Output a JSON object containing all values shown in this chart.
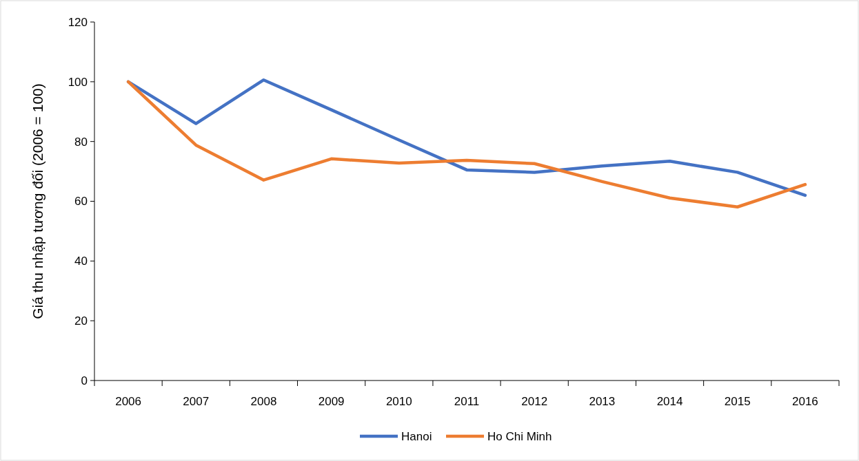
{
  "chart_data": {
    "type": "line",
    "ylabel": "Giá thu nhập tương đối (2006 = 100)",
    "categories": [
      "2006",
      "2007",
      "2008",
      "2009",
      "2010",
      "2011",
      "2012",
      "2013",
      "2014",
      "2015",
      "2016"
    ],
    "series": [
      {
        "name": "Hanoi",
        "color": "#4472c4",
        "values": [
          100,
          86,
          100.6,
          90.6,
          80.5,
          70.5,
          69.7,
          71.8,
          73.4,
          69.7,
          62
        ]
      },
      {
        "name": "Ho Chi Minh",
        "color": "#ed7d31",
        "values": [
          100,
          78.8,
          67.1,
          74.2,
          72.8,
          73.7,
          72.6,
          66.6,
          61.1,
          58.1,
          65.6
        ]
      }
    ],
    "ylim": [
      0,
      120
    ],
    "yticks": [
      0,
      20,
      40,
      60,
      80,
      100,
      120
    ],
    "grid": false,
    "legend": "bottom",
    "marker": "none",
    "line_style": "solid"
  }
}
